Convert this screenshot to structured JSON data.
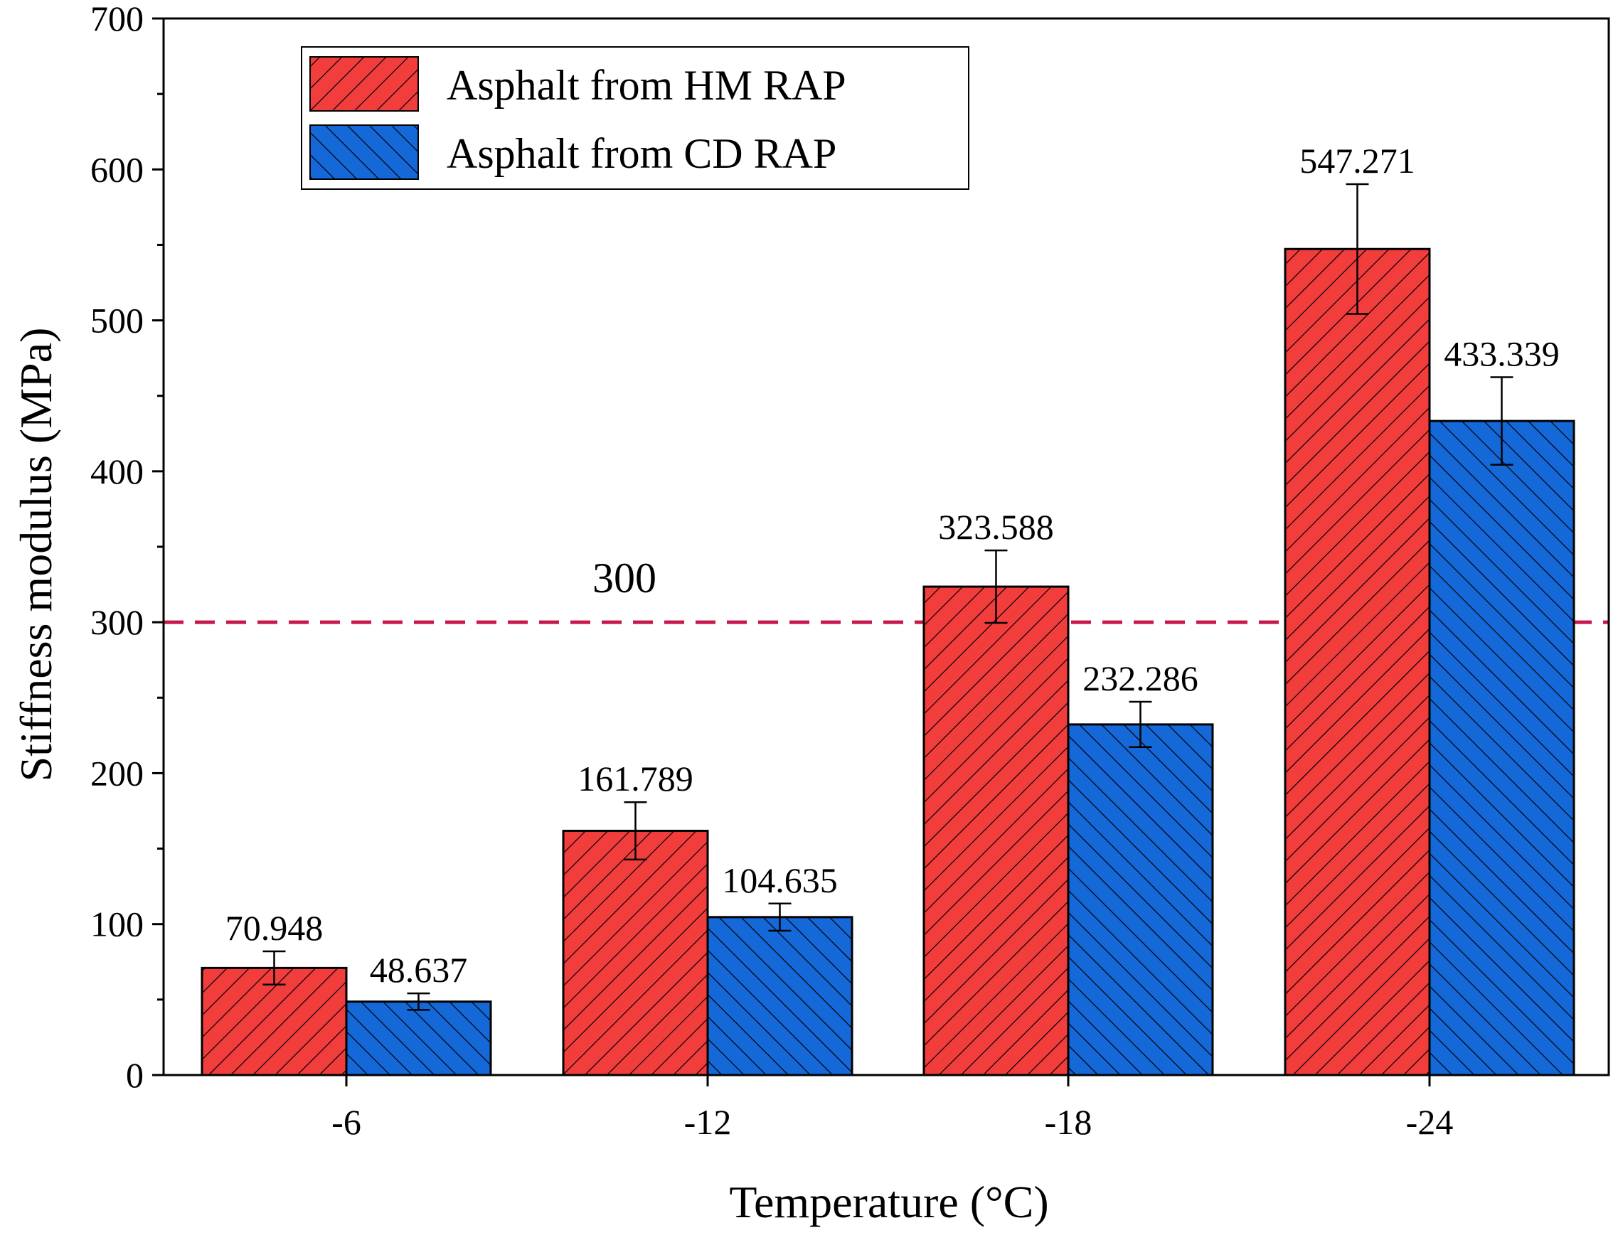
{
  "chart_data": {
    "type": "bar",
    "title": "",
    "xlabel": "Temperature (°C)",
    "ylabel": "Stiffness modulus (MPa)",
    "categories": [
      "-6",
      "-12",
      "-18",
      "-24"
    ],
    "ylim": [
      0,
      700
    ],
    "yticks": [
      0,
      100,
      200,
      300,
      400,
      500,
      600,
      700
    ],
    "ytick_labels": [
      "0",
      "100",
      "200",
      "300",
      "400",
      "500",
      "600",
      "700"
    ],
    "grid": false,
    "legend_position": "top-left",
    "series": [
      {
        "name": "Asphalt from HM RAP",
        "color": "#f23d3d",
        "hatch": "forward-diagonal",
        "values": [
          70.948,
          161.789,
          323.588,
          547.271
        ],
        "value_labels": [
          "70.948",
          "161.789",
          "323.588",
          "547.271"
        ],
        "errors": [
          11,
          19,
          24,
          43
        ]
      },
      {
        "name": "Asphalt from CD RAP",
        "color": "#1568d8",
        "hatch": "back-diagonal",
        "values": [
          48.637,
          104.635,
          232.286,
          433.339
        ],
        "value_labels": [
          "48.637",
          "104.635",
          "232.286",
          "433.339"
        ],
        "errors": [
          5.5,
          9,
          15,
          29
        ]
      }
    ],
    "reference_line": {
      "value": 300,
      "label": "300",
      "color": "#c8174a",
      "style": "dashed"
    }
  }
}
